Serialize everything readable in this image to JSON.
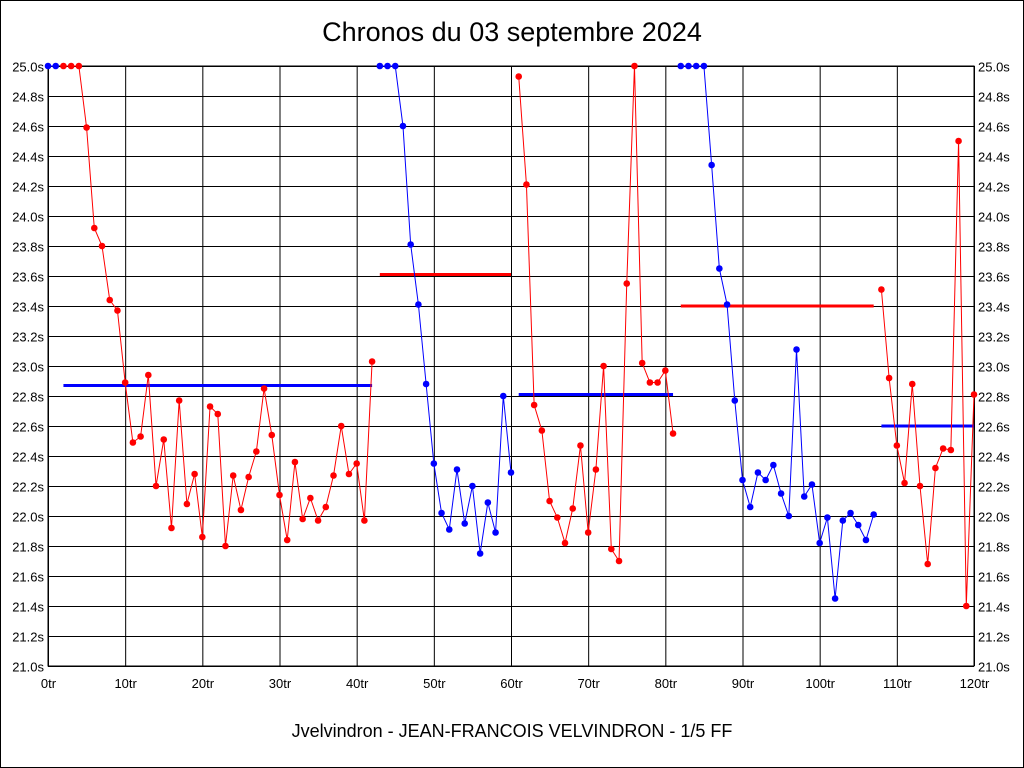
{
  "chart_data": {
    "type": "line",
    "title": "Chronos du 03 septembre 2024",
    "footer": "Jvelvindron - JEAN-FRANCOIS VELVINDRON - 1/5 FF",
    "xlim": [
      0,
      120
    ],
    "ylim": [
      21.0,
      25.0
    ],
    "x_ticks": [
      "0tr",
      "10tr",
      "20tr",
      "30tr",
      "40tr",
      "50tr",
      "60tr",
      "70tr",
      "80tr",
      "90tr",
      "100tr",
      "110tr",
      "120tr"
    ],
    "y_ticks": [
      "21.0s",
      "21.2s",
      "21.4s",
      "21.6s",
      "21.8s",
      "22.0s",
      "22.2s",
      "22.4s",
      "22.6s",
      "22.8s",
      "23.0s",
      "23.2s",
      "23.4s",
      "23.6s",
      "23.8s",
      "24.0s",
      "24.2s",
      "24.4s",
      "24.6s",
      "24.8s",
      "25.0s"
    ],
    "grid": true,
    "y_axis_both_sides": true,
    "segments": [
      {
        "color": "#0000ff",
        "start": 0,
        "values": [
          25.0,
          25.0
        ]
      },
      {
        "color": "#ff0000",
        "start": 2,
        "values": [
          25.0,
          25.0,
          25.0,
          24.59,
          23.92,
          23.8,
          23.44,
          23.37,
          22.89,
          22.49,
          22.53,
          22.94,
          22.2,
          22.51,
          21.92,
          22.77,
          22.08,
          22.28,
          21.86,
          22.73,
          22.68,
          21.8,
          22.27,
          22.04,
          22.26,
          22.43,
          22.85,
          22.54,
          22.14,
          21.84,
          22.36,
          21.98,
          22.12,
          21.97,
          22.06,
          22.27,
          22.6,
          22.28,
          22.35,
          21.97,
          23.03
        ],
        "average": 22.87,
        "average_color": "#0000ff"
      },
      {
        "color": "#0000ff",
        "start": 43,
        "values": [
          25.0,
          25.0,
          25.0,
          24.6,
          23.81,
          23.41,
          22.88,
          22.35,
          22.02,
          21.91,
          22.31,
          21.95,
          22.2,
          21.75,
          22.09,
          21.89,
          22.8,
          22.29
        ],
        "average": 23.61,
        "average_color": "#ff0000"
      },
      {
        "color": "#ff0000",
        "start": 61,
        "values": [
          24.93,
          24.21,
          22.74,
          22.57,
          22.1,
          21.99,
          21.82,
          22.05,
          22.47,
          21.89,
          22.31,
          23.0,
          21.78,
          21.7,
          23.55,
          25.0,
          23.02,
          22.89,
          22.89,
          22.97,
          22.55
        ],
        "average": 22.81,
        "average_color": "#0000ff"
      },
      {
        "color": "#0000ff",
        "start": 82,
        "values": [
          25.0,
          25.0,
          25.0,
          25.0,
          24.34,
          23.65,
          23.41,
          22.77,
          22.24,
          22.06,
          22.29,
          22.24,
          22.34,
          22.15,
          22.0,
          23.11,
          22.13,
          22.21,
          21.82,
          21.99,
          21.45,
          21.97,
          22.02,
          21.94,
          21.84,
          22.01
        ],
        "average": 23.4,
        "average_color": "#ff0000"
      },
      {
        "color": "#ff0000",
        "start": 108,
        "values": [
          23.51,
          22.92,
          22.47,
          22.22,
          22.88,
          22.2,
          21.68,
          22.32,
          22.45,
          22.44,
          24.5,
          21.4,
          22.81
        ],
        "average": 22.6,
        "average_color": "#0000ff"
      }
    ]
  }
}
